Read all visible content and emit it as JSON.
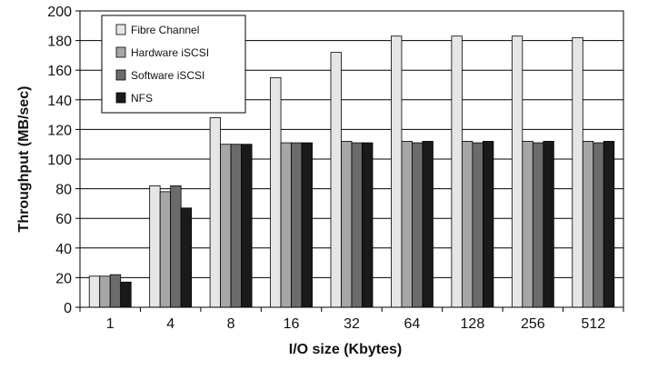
{
  "chart_data": {
    "type": "bar",
    "xlabel": "I/O size (Kbytes)",
    "ylabel": "Throughput (MB/sec)",
    "ylim": [
      0,
      200
    ],
    "yticks": [
      0,
      20,
      40,
      60,
      80,
      100,
      120,
      140,
      160,
      180,
      200
    ],
    "categories": [
      "1",
      "4",
      "8",
      "16",
      "32",
      "64",
      "128",
      "256",
      "512"
    ],
    "grid": true,
    "legend_position": "top-left",
    "series": [
      {
        "name": "Fibre Channel",
        "color": "#e6e6e6",
        "values": [
          21,
          82,
          128,
          155,
          172,
          183,
          183,
          183,
          182
        ]
      },
      {
        "name": "Hardware iSCSI",
        "color": "#a6a6a6",
        "values": [
          21,
          78,
          110,
          111,
          112,
          112,
          112,
          112,
          112
        ]
      },
      {
        "name": "Software iSCSI",
        "color": "#6b6b6b",
        "values": [
          22,
          82,
          110,
          111,
          111,
          111,
          111,
          111,
          111
        ]
      },
      {
        "name": "NFS",
        "color": "#1a1a1a",
        "values": [
          17,
          67,
          110,
          111,
          111,
          112,
          112,
          112,
          112
        ]
      }
    ]
  }
}
